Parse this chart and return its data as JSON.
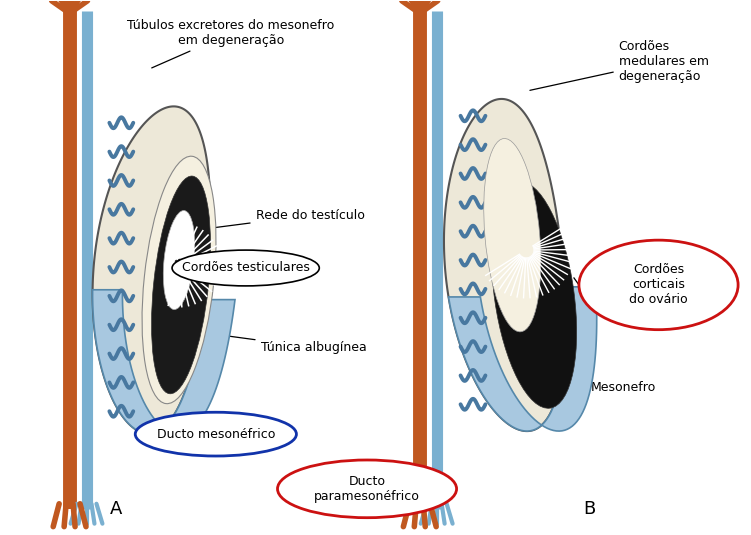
{
  "background_color": "#ffffff",
  "labels": {
    "tubulos": "Túbulos excretores do mesonefro\nem degeneração",
    "rede_testiculo": "Rede do testículo",
    "cordoes_testiculares": "Cordões testiculares",
    "tunica": "Túnica albugínea",
    "ducto_mesonefrico": "Ducto mesonéfrico",
    "ducto_paramesonefrico": "Ducto\nparamesonéfrico",
    "cordoes_medulares": "Cordões\nmedulares em\ndegeneração",
    "cordoes_corticais": "Cordões\ncorticais\ndo ovário",
    "mesonefro": "Mesonefro",
    "label_A": "A",
    "label_B": "B"
  },
  "colors": {
    "gonad_fill": "#ede8d8",
    "gonad_outline": "#555555",
    "mesonephros_fill": "#a8c8e0",
    "mesonephros_outline": "#5588aa",
    "duct_blue": "#7ab0d0",
    "duct_blue_inner": "#b8d8ee",
    "duct_orange": "#c05820",
    "tubule_blue": "#4878a0",
    "black_region": "#111111",
    "white": "#ffffff",
    "text_black": "#000000",
    "ellipse_blue": "#1133aa",
    "ellipse_red": "#cc1111",
    "line_color": "#222222",
    "stipple": "#d8d0b8"
  }
}
